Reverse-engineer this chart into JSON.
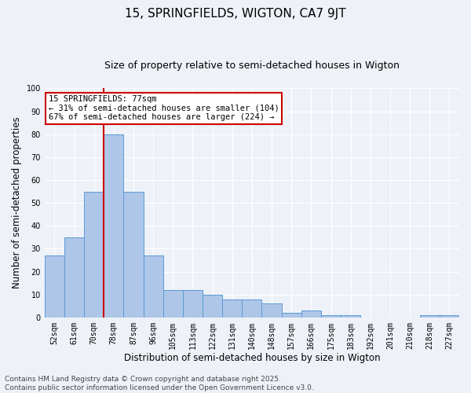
{
  "title": "15, SPRINGFIELDS, WIGTON, CA7 9JT",
  "subtitle": "Size of property relative to semi-detached houses in Wigton",
  "xlabel": "Distribution of semi-detached houses by size in Wigton",
  "ylabel": "Number of semi-detached properties",
  "categories": [
    "52sqm",
    "61sqm",
    "70sqm",
    "78sqm",
    "87sqm",
    "96sqm",
    "105sqm",
    "113sqm",
    "122sqm",
    "131sqm",
    "140sqm",
    "148sqm",
    "157sqm",
    "166sqm",
    "175sqm",
    "183sqm",
    "192sqm",
    "201sqm",
    "210sqm",
    "218sqm",
    "227sqm"
  ],
  "values": [
    27,
    35,
    55,
    80,
    55,
    27,
    12,
    12,
    10,
    8,
    8,
    6,
    2,
    3,
    1,
    1,
    0,
    0,
    0,
    1,
    1
  ],
  "bar_color": "#aec6e8",
  "bar_edge_color": "#5b9bd5",
  "vline_index": 3,
  "vline_color": "#cc0000",
  "ylim": [
    0,
    100
  ],
  "annotation_title": "15 SPRINGFIELDS: 77sqm",
  "annotation_line1": "← 31% of semi-detached houses are smaller (104)",
  "annotation_line2": "67% of semi-detached houses are larger (224) →",
  "annotation_box_color": "#cc0000",
  "footer_line1": "Contains HM Land Registry data © Crown copyright and database right 2025.",
  "footer_line2": "Contains public sector information licensed under the Open Government Licence v3.0.",
  "background_color": "#eef2f8",
  "grid_color": "#ffffff",
  "title_fontsize": 11,
  "subtitle_fontsize": 9,
  "axis_label_fontsize": 8.5,
  "tick_fontsize": 7,
  "footer_fontsize": 6.5,
  "annotation_fontsize": 7.5
}
